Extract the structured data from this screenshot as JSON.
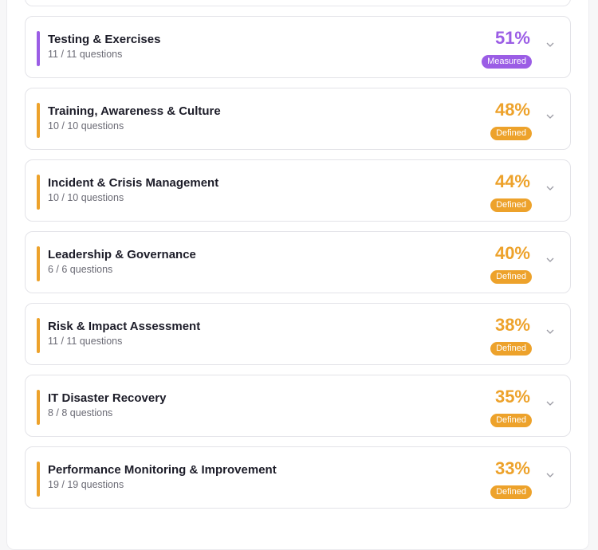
{
  "colors": {
    "measured": "#9b5de5",
    "defined": "#eda22b"
  },
  "categories": [
    {
      "title": "Testing & Exercises",
      "questions": "11 / 11 questions",
      "percent": "51%",
      "level": "Measured",
      "tone": "measured"
    },
    {
      "title": "Training, Awareness & Culture",
      "questions": "10 / 10 questions",
      "percent": "48%",
      "level": "Defined",
      "tone": "defined"
    },
    {
      "title": "Incident & Crisis Management",
      "questions": "10 / 10 questions",
      "percent": "44%",
      "level": "Defined",
      "tone": "defined"
    },
    {
      "title": "Leadership & Governance",
      "questions": "6 / 6 questions",
      "percent": "40%",
      "level": "Defined",
      "tone": "defined"
    },
    {
      "title": "Risk & Impact Assessment",
      "questions": "11 / 11 questions",
      "percent": "38%",
      "level": "Defined",
      "tone": "defined"
    },
    {
      "title": "IT Disaster Recovery",
      "questions": "8 / 8 questions",
      "percent": "35%",
      "level": "Defined",
      "tone": "defined"
    },
    {
      "title": "Performance Monitoring & Improvement",
      "questions": "19 / 19 questions",
      "percent": "33%",
      "level": "Defined",
      "tone": "defined"
    }
  ]
}
